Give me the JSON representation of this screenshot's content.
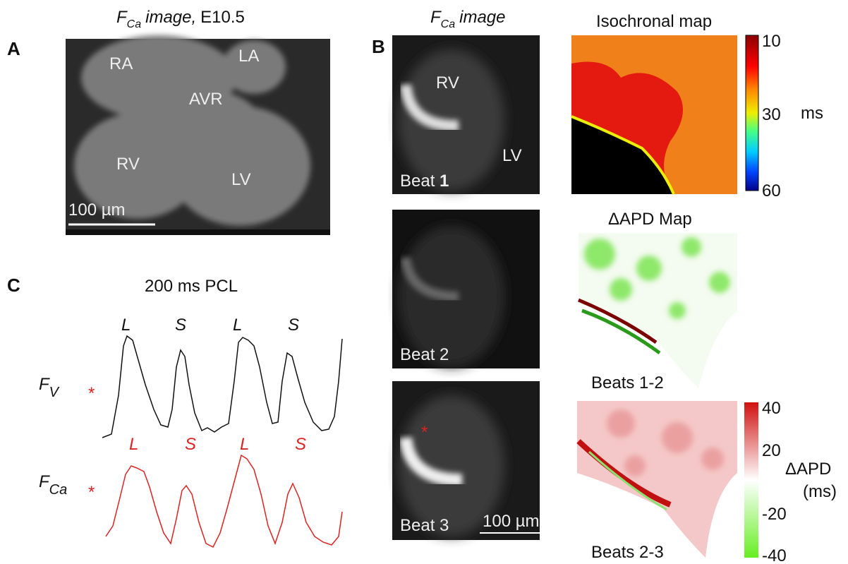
{
  "panel_a": {
    "letter": "A",
    "title": {
      "f": "F",
      "sub": "Ca",
      "italic": "image,",
      "rest": "E10.5"
    },
    "labels": [
      "RA",
      "LA",
      "AVR",
      "RV",
      "LV"
    ],
    "scale_bar": "100 µm"
  },
  "panel_b": {
    "letter": "B",
    "image_header": {
      "f": "F",
      "sub": "Ca",
      "italic": "image"
    },
    "isochronal_title": "Isochronal map",
    "image_labels": [
      "RV",
      "LV"
    ],
    "beats": [
      "Beat",
      "1",
      "Beat 2",
      "Beat 3"
    ],
    "stim_marker": "*",
    "scale_bar": "100 µm",
    "iso_colorbar": {
      "ticks": [
        10,
        30,
        60
      ],
      "unit": "ms"
    },
    "apd_title": "ΔAPD Map",
    "apd_labels": [
      "Beats 1-2",
      "Beats 2-3"
    ],
    "apd_colorbar": {
      "ticks": [
        40,
        20,
        -20,
        -40
      ],
      "title": "ΔAPD",
      "unit": "(ms)"
    }
  },
  "panel_c": {
    "letter": "C",
    "title": "200 ms PCL",
    "fv": {
      "f": "F",
      "sub": "V",
      "marker": "*",
      "beats": [
        "L",
        "S",
        "L",
        "S"
      ]
    },
    "fca": {
      "f": "F",
      "sub": "Ca",
      "marker": "*",
      "beats": [
        "L",
        "S",
        "L",
        "S"
      ]
    }
  }
}
